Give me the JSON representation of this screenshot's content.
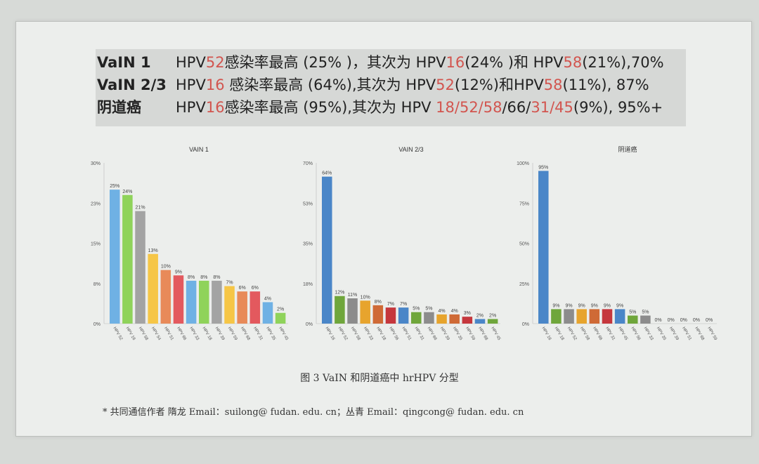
{
  "summary": [
    {
      "label": "VaIN 1",
      "parts": [
        {
          "t": "HPV",
          "c": ""
        },
        {
          "t": "52",
          "c": "red"
        },
        {
          "t": "感染率最高 (25% )，其次为 HPV",
          "c": ""
        },
        {
          "t": "16",
          "c": "red"
        },
        {
          "t": "(24% )和  HPV",
          "c": ""
        },
        {
          "t": "58",
          "c": "red"
        },
        {
          "t": "(21%),70%",
          "c": ""
        }
      ]
    },
    {
      "label": "VaIN 2/3",
      "parts": [
        {
          "t": "HPV",
          "c": ""
        },
        {
          "t": "16",
          "c": "red"
        },
        {
          "t": " 感染率最高 (64%),其次为 HPV",
          "c": ""
        },
        {
          "t": "52",
          "c": "red"
        },
        {
          "t": "(12%)和HPV",
          "c": ""
        },
        {
          "t": "58",
          "c": "red"
        },
        {
          "t": "(11%), 87%",
          "c": ""
        }
      ]
    },
    {
      "label": "阴道癌",
      "parts": [
        {
          "t": "HPV",
          "c": ""
        },
        {
          "t": "16",
          "c": "red"
        },
        {
          "t": "感染率最高 (95%),其次为 HPV ",
          "c": ""
        },
        {
          "t": "18/52/58",
          "c": "red"
        },
        {
          "t": "/66/",
          "c": ""
        },
        {
          "t": "31/45",
          "c": "red"
        },
        {
          "t": "(9%), 95%+",
          "c": ""
        }
      ]
    }
  ],
  "chart_data": [
    {
      "type": "bar",
      "title": "VAIN 1",
      "ylim": [
        0,
        30
      ],
      "yticks": [
        "0%",
        "8%",
        "15%",
        "23%",
        "30%"
      ],
      "categories": [
        "HPV 52",
        "HPV 16",
        "HPV 58",
        "HPV 54",
        "HPV 51",
        "HPV 66",
        "HPV 33",
        "HPV 18",
        "HPV 39",
        "HPV 59",
        "HPV 68",
        "HPV 31",
        "HPV 35",
        "HPV 45"
      ],
      "values": [
        25,
        24,
        21,
        13,
        10,
        9,
        8,
        8,
        8,
        7,
        6,
        6,
        4,
        2
      ],
      "labels": [
        "25%",
        "24%",
        "21%",
        "13%",
        "10%",
        "9%",
        "8%",
        "8%",
        "8%",
        "7%",
        "6%",
        "6%",
        "4%",
        "2%"
      ],
      "colors": [
        "#6fb1e4",
        "#8fd35a",
        "#a3a3a3",
        "#f6c646",
        "#e88a59",
        "#e3595e",
        "#6fb1e4",
        "#8fd35a",
        "#a3a3a3",
        "#f6c646",
        "#e88a59",
        "#e3595e",
        "#6fb1e4",
        "#8fd35a"
      ]
    },
    {
      "type": "bar",
      "title": "VAIN 2/3",
      "ylim": [
        0,
        70
      ],
      "yticks": [
        "0%",
        "18%",
        "35%",
        "53%",
        "70%"
      ],
      "categories": [
        "HPV 16",
        "HPV 52",
        "HPV 58",
        "HPV 33",
        "HPV 18",
        "HPV 56",
        "HPV 51",
        "HPV 31",
        "HPV 66",
        "HPV 39",
        "HPV 35",
        "HPV 59",
        "HPV 68",
        "HPV 45"
      ],
      "values": [
        64,
        12,
        11,
        10,
        8,
        7,
        7,
        5,
        5,
        4,
        4,
        3,
        2,
        2
      ],
      "labels": [
        "64%",
        "12%",
        "11%",
        "10%",
        "8%",
        "7%",
        "7%",
        "5%",
        "5%",
        "4%",
        "4%",
        "3%",
        "2%",
        "2%"
      ],
      "colors": [
        "#4a86c8",
        "#6fa63b",
        "#8c8c8c",
        "#e7a42d",
        "#cf6a36",
        "#c5373d",
        "#4a86c8",
        "#6fa63b",
        "#8c8c8c",
        "#e7a42d",
        "#cf6a36",
        "#c5373d",
        "#4a86c8",
        "#6fa63b"
      ]
    },
    {
      "type": "bar",
      "title": "阴道癌",
      "ylim": [
        0,
        100
      ],
      "yticks": [
        "0%",
        "25%",
        "50%",
        "75%",
        "100%"
      ],
      "categories": [
        "HPV 16",
        "HPV 18",
        "HPV 52",
        "HPV 58",
        "HPV 66",
        "HPV 31",
        "HPV 45",
        "HPV 56",
        "HPV 33",
        "HPV 35",
        "HPV 39",
        "HPV 51",
        "HPV 68",
        "HPV 59"
      ],
      "values": [
        95,
        9,
        9,
        9,
        9,
        9,
        9,
        5,
        5,
        0,
        0,
        0,
        0,
        0
      ],
      "labels": [
        "95%",
        "9%",
        "9%",
        "9%",
        "9%",
        "9%",
        "9%",
        "5%",
        "5%",
        "0%",
        "0%",
        "0%",
        "0%",
        "0%"
      ],
      "colors": [
        "#4a86c8",
        "#6fa63b",
        "#8c8c8c",
        "#e7a42d",
        "#cf6a36",
        "#c5373d",
        "#4a86c8",
        "#6fa63b",
        "#8c8c8c",
        "#e7a42d",
        "#cf6a36",
        "#c5373d",
        "#4a86c8",
        "#6fa63b"
      ]
    }
  ],
  "caption": "图 3    VaIN 和阴道癌中 hrHPV 分型",
  "footnote": "*   共同通信作者    隋龙 Email：suilong@ fudan. edu. cn；丛青 Email：qingcong@ fudan. edu. cn"
}
